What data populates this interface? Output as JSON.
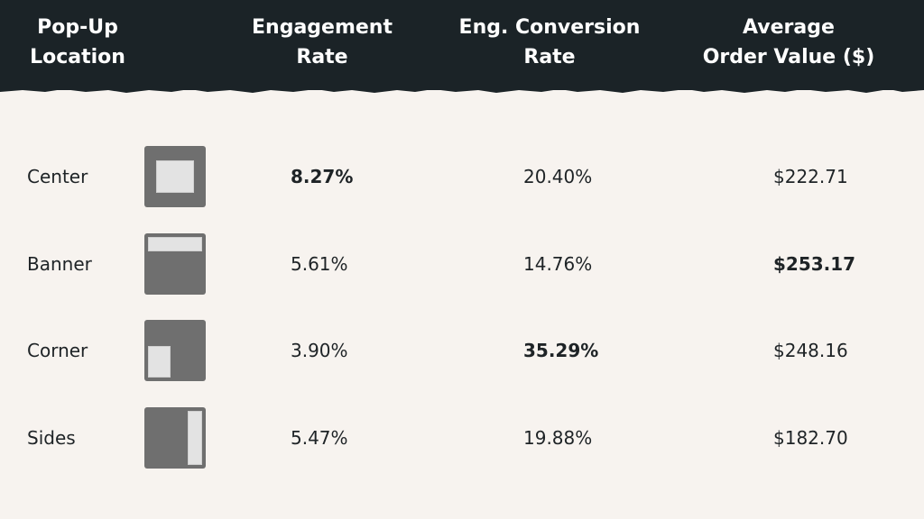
{
  "chart_data": {
    "type": "table",
    "columns": [
      "Pop-Up\nLocation",
      "Engagement\nRate",
      "Eng. Conversion\nRate",
      "Average\nOrder Value ($)"
    ],
    "rows": [
      {
        "location": "Center",
        "icon": "center-popup-icon",
        "engagement_rate": "8.27%",
        "conversion_rate": "20.40%",
        "aov": "$222.71",
        "bold": "engagement_rate"
      },
      {
        "location": "Banner",
        "icon": "banner-popup-icon",
        "engagement_rate": "5.61%",
        "conversion_rate": "14.76%",
        "aov": "$253.17",
        "bold": "aov"
      },
      {
        "location": "Corner",
        "icon": "corner-popup-icon",
        "engagement_rate": "3.90%",
        "conversion_rate": "35.29%",
        "aov": "$248.16",
        "bold": "conversion_rate"
      },
      {
        "location": "Sides",
        "icon": "sides-popup-icon",
        "engagement_rate": "5.47%",
        "conversion_rate": "19.88%",
        "aov": "$182.70",
        "bold": null
      }
    ]
  },
  "colors": {
    "header_bg": "#1b2327",
    "page_bg": "#f7f3ef",
    "icon_frame": "#6f6f6f",
    "icon_popup": "#e3e3e3"
  }
}
